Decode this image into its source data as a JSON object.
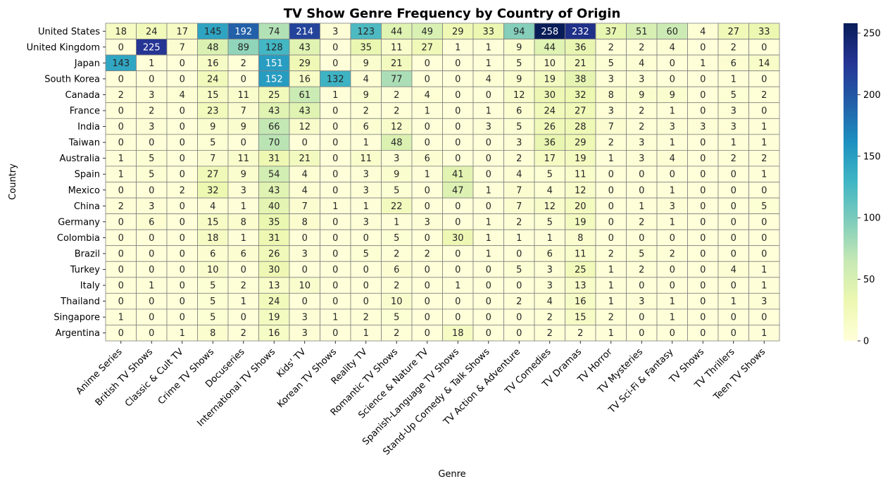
{
  "chart_data": {
    "type": "heatmap",
    "title": "TV Show Genre Frequency by Country of Origin",
    "xlabel": "Genre",
    "ylabel": "Country",
    "colormap": "YlGnBu",
    "colorbar_range": [
      0,
      258
    ],
    "colorbar_ticks": [
      "0",
      "50",
      "100",
      "150",
      "200",
      "250"
    ],
    "x_categories": [
      "Anime Series",
      "British TV Shows",
      "Classic & Cult TV",
      "Crime TV Shows",
      "Docuseries",
      "International TV Shows",
      "Kids' TV",
      "Korean TV Shows",
      "Reality TV",
      "Romantic TV Shows",
      "Science & Nature TV",
      "Spanish-Language TV Shows",
      "Stand-Up Comedy & Talk Shows",
      "TV Action & Adventure",
      "TV Comedies",
      "TV Dramas",
      "TV Horror",
      "TV Mysteries",
      "TV Sci-Fi & Fantasy",
      "TV Shows",
      "TV Thrillers",
      "Teen TV Shows"
    ],
    "y_categories": [
      "United States",
      "United Kingdom",
      "Japan",
      "South Korea",
      "Canada",
      "France",
      "India",
      "Taiwan",
      "Australia",
      "Spain",
      "Mexico",
      "China",
      "Germany",
      "Colombia",
      "Brazil",
      "Turkey",
      "Italy",
      "Thailand",
      "Singapore",
      "Argentina"
    ],
    "values": [
      [
        18,
        24,
        17,
        145,
        192,
        74,
        214,
        3,
        123,
        44,
        49,
        29,
        33,
        94,
        258,
        232,
        37,
        51,
        60,
        4,
        27,
        33
      ],
      [
        0,
        225,
        7,
        48,
        89,
        128,
        43,
        0,
        35,
        11,
        27,
        1,
        1,
        9,
        44,
        36,
        2,
        2,
        4,
        0,
        2,
        0
      ],
      [
        143,
        1,
        0,
        16,
        2,
        151,
        29,
        0,
        9,
        21,
        0,
        0,
        1,
        5,
        10,
        21,
        5,
        4,
        0,
        1,
        6,
        14
      ],
      [
        0,
        0,
        0,
        24,
        0,
        152,
        16,
        132,
        4,
        77,
        0,
        0,
        4,
        9,
        19,
        38,
        3,
        3,
        0,
        0,
        1,
        0
      ],
      [
        2,
        3,
        4,
        15,
        11,
        25,
        61,
        1,
        9,
        2,
        4,
        0,
        0,
        12,
        30,
        32,
        8,
        9,
        9,
        0,
        5,
        2
      ],
      [
        0,
        2,
        0,
        23,
        7,
        43,
        43,
        0,
        2,
        2,
        1,
        0,
        1,
        6,
        24,
        27,
        3,
        2,
        1,
        0,
        3,
        0
      ],
      [
        0,
        3,
        0,
        9,
        9,
        66,
        12,
        0,
        6,
        12,
        0,
        0,
        3,
        5,
        26,
        28,
        7,
        2,
        3,
        3,
        3,
        1
      ],
      [
        0,
        0,
        0,
        5,
        0,
        70,
        0,
        0,
        1,
        48,
        0,
        0,
        0,
        3,
        36,
        29,
        2,
        3,
        1,
        0,
        1,
        1
      ],
      [
        1,
        5,
        0,
        7,
        11,
        31,
        21,
        0,
        11,
        3,
        6,
        0,
        0,
        2,
        17,
        19,
        1,
        3,
        4,
        0,
        2,
        2
      ],
      [
        1,
        5,
        0,
        27,
        9,
        54,
        4,
        0,
        3,
        9,
        1,
        41,
        0,
        4,
        5,
        11,
        0,
        0,
        0,
        0,
        0,
        1
      ],
      [
        0,
        0,
        2,
        32,
        3,
        43,
        4,
        0,
        3,
        5,
        0,
        47,
        1,
        7,
        4,
        12,
        0,
        0,
        1,
        0,
        0,
        0
      ],
      [
        2,
        3,
        0,
        4,
        1,
        40,
        7,
        1,
        1,
        22,
        0,
        0,
        0,
        7,
        12,
        20,
        0,
        1,
        3,
        0,
        0,
        5
      ],
      [
        0,
        6,
        0,
        15,
        8,
        35,
        8,
        0,
        3,
        1,
        3,
        0,
        1,
        2,
        5,
        19,
        0,
        2,
        1,
        0,
        0,
        0
      ],
      [
        0,
        0,
        0,
        18,
        1,
        31,
        0,
        0,
        0,
        5,
        0,
        30,
        1,
        1,
        1,
        8,
        0,
        0,
        0,
        0,
        0,
        0
      ],
      [
        0,
        0,
        0,
        6,
        6,
        26,
        3,
        0,
        5,
        2,
        2,
        0,
        1,
        0,
        6,
        11,
        2,
        5,
        2,
        0,
        0,
        0
      ],
      [
        0,
        0,
        0,
        10,
        0,
        30,
        0,
        0,
        0,
        6,
        0,
        0,
        0,
        5,
        3,
        25,
        1,
        2,
        0,
        0,
        4,
        1
      ],
      [
        0,
        1,
        0,
        5,
        2,
        13,
        10,
        0,
        0,
        2,
        0,
        1,
        0,
        0,
        3,
        13,
        1,
        0,
        0,
        0,
        0,
        1
      ],
      [
        0,
        0,
        0,
        5,
        1,
        24,
        0,
        0,
        0,
        10,
        0,
        0,
        0,
        2,
        4,
        16,
        1,
        3,
        1,
        0,
        1,
        3
      ],
      [
        1,
        0,
        0,
        5,
        0,
        19,
        3,
        1,
        2,
        5,
        0,
        0,
        0,
        0,
        2,
        15,
        2,
        0,
        1,
        0,
        0,
        0
      ],
      [
        0,
        0,
        1,
        8,
        2,
        16,
        3,
        0,
        1,
        2,
        0,
        18,
        0,
        0,
        2,
        2,
        1,
        0,
        0,
        0,
        0,
        1
      ]
    ],
    "grid": true,
    "annotated": true,
    "colorbar_position": "right"
  }
}
